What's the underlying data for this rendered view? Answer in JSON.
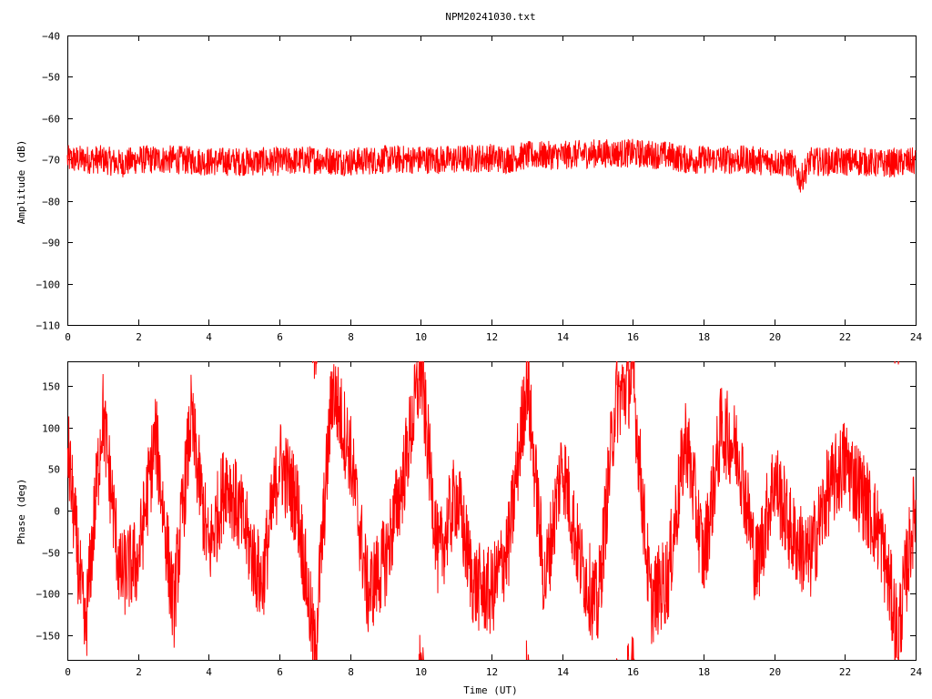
{
  "title": "NPM20241030.txt",
  "chart_data": [
    {
      "type": "line",
      "title": "NPM20241030.txt",
      "xlabel": "",
      "ylabel": "Amplitude (dB)",
      "xlim": [
        0,
        24
      ],
      "ylim": [
        -110,
        -40
      ],
      "xticks": [
        0,
        2,
        4,
        6,
        8,
        10,
        12,
        14,
        16,
        18,
        20,
        22,
        24
      ],
      "yticks": [
        -40,
        -50,
        -60,
        -70,
        -80,
        -90,
        -100,
        -110
      ],
      "grid": false,
      "series": [
        {
          "color": "#ff0000",
          "x": [
            0,
            1,
            1.5,
            2,
            3,
            4,
            5,
            6,
            7,
            8,
            9,
            10,
            11,
            12,
            12.4,
            13,
            14,
            15,
            16,
            17,
            17.5,
            18,
            19,
            20,
            20.5,
            20.75,
            21,
            22,
            22.5,
            23,
            24
          ],
          "y": [
            -70,
            -70,
            -71,
            -70,
            -70,
            -70.5,
            -70.5,
            -70.5,
            -70,
            -70.5,
            -70,
            -70,
            -70,
            -69.5,
            -70,
            -69,
            -69,
            -68.5,
            -68.5,
            -69,
            -70,
            -70,
            -70,
            -70.5,
            -71,
            -75,
            -70.5,
            -70.5,
            -70.5,
            -71,
            -70.5
          ],
          "spread_db": 3.5
        }
      ]
    },
    {
      "type": "line",
      "title": "",
      "xlabel": "Time (UT)",
      "ylabel": "Phase (deg)",
      "xlim": [
        0,
        24
      ],
      "ylim": [
        -180,
        180
      ],
      "xticks": [
        0,
        2,
        4,
        6,
        8,
        10,
        12,
        14,
        16,
        18,
        20,
        22,
        24
      ],
      "yticks": [
        150,
        100,
        50,
        0,
        -50,
        -100,
        -150
      ],
      "grid": false,
      "series": [
        {
          "color": "#ff0000",
          "note_style": "wrapped",
          "x": [
            0,
            0.5,
            1,
            1.5,
            2,
            2.5,
            3,
            3.5,
            4,
            4.5,
            5,
            5.5,
            6,
            6.5,
            7,
            7.5,
            8,
            8.5,
            9,
            9.5,
            10,
            10.5,
            11,
            11.5,
            12,
            12.5,
            13,
            13.5,
            14,
            14.5,
            15,
            15.5,
            16,
            16.5,
            17,
            17.5,
            18,
            18.5,
            19,
            19.5,
            20,
            20.5,
            21,
            21.5,
            22,
            22.5,
            23,
            23.5,
            24
          ],
          "y": [
            80,
            -150,
            120,
            -80,
            -60,
            90,
            -120,
            110,
            -50,
            40,
            -20,
            -90,
            60,
            10,
            -170,
            150,
            70,
            -100,
            -60,
            40,
            170,
            -60,
            20,
            -90,
            -100,
            -40,
            160,
            -90,
            60,
            -60,
            -120,
            130,
            160,
            -110,
            -80,
            90,
            -60,
            100,
            70,
            -70,
            40,
            -30,
            -60,
            20,
            60,
            20,
            -30,
            -150,
            10
          ],
          "spread_deg": 55
        }
      ]
    }
  ]
}
